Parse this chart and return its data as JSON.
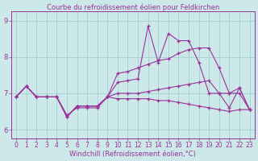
{
  "title": "Courbe du refroidissement éolien pour Feldkirchen",
  "xlabel": "Windchill (Refroidissement éolien,°C)",
  "background_color": "#cce8e8",
  "line_color": "#993399",
  "grid_color": "#99cccc",
  "xlim": [
    -0.5,
    23.5
  ],
  "ylim": [
    5.75,
    9.25
  ],
  "yticks": [
    6,
    7,
    8,
    9
  ],
  "xticks": [
    0,
    1,
    2,
    3,
    4,
    5,
    6,
    7,
    8,
    9,
    10,
    11,
    12,
    13,
    14,
    15,
    16,
    17,
    18,
    19,
    20,
    21,
    22,
    23
  ],
  "series1": [
    6.9,
    7.2,
    6.9,
    6.9,
    6.9,
    6.4,
    6.6,
    6.6,
    6.6,
    6.9,
    7.3,
    7.35,
    7.4,
    8.85,
    7.85,
    8.65,
    8.45,
    8.45,
    7.85,
    7.0,
    7.0,
    6.6,
    7.15,
    6.55
  ],
  "series2": [
    6.9,
    7.2,
    6.9,
    6.9,
    6.9,
    6.35,
    6.65,
    6.65,
    6.65,
    6.9,
    7.0,
    7.0,
    7.0,
    7.05,
    7.1,
    7.15,
    7.2,
    7.25,
    7.3,
    7.35,
    7.0,
    7.0,
    7.0,
    6.55
  ],
  "series3": [
    6.9,
    7.2,
    6.9,
    6.9,
    6.9,
    6.35,
    6.65,
    6.65,
    6.65,
    6.9,
    6.85,
    6.85,
    6.85,
    6.85,
    6.8,
    6.8,
    6.75,
    6.7,
    6.65,
    6.6,
    6.55,
    6.5,
    6.55,
    6.55
  ],
  "series4": [
    6.9,
    7.2,
    6.9,
    6.9,
    6.9,
    6.35,
    6.65,
    6.65,
    6.65,
    6.9,
    7.55,
    7.6,
    7.7,
    7.8,
    7.9,
    7.95,
    8.1,
    8.2,
    8.25,
    8.25,
    7.7,
    7.0,
    7.15,
    6.55
  ],
  "title_fontsize": 6,
  "xlabel_fontsize": 6,
  "tick_fontsize": 5.5
}
